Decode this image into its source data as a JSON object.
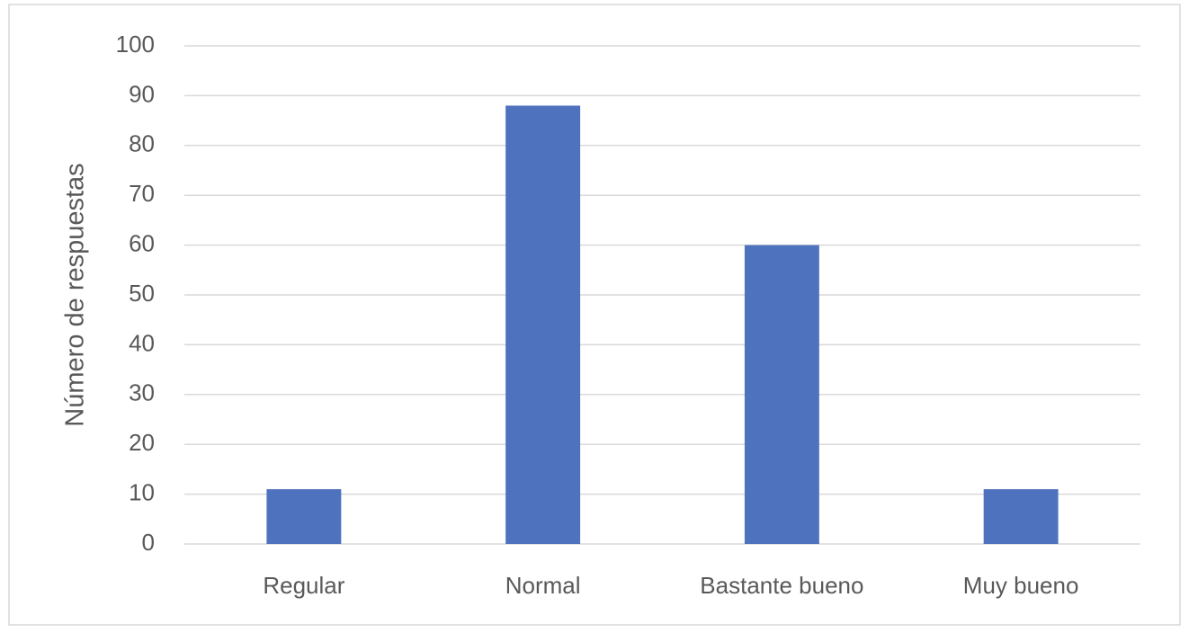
{
  "chart_data": {
    "type": "bar",
    "y_label": "Número de respuestas",
    "categories": [
      "Regular",
      "Normal",
      "Bastante bueno",
      "Muy bueno"
    ],
    "values": [
      11,
      88,
      60,
      11
    ],
    "color": "#4f72be",
    "ylim": [
      0,
      100
    ],
    "yticks": [
      0,
      10,
      20,
      30,
      40,
      50,
      60,
      70,
      80,
      90,
      100
    ],
    "grid": true
  }
}
